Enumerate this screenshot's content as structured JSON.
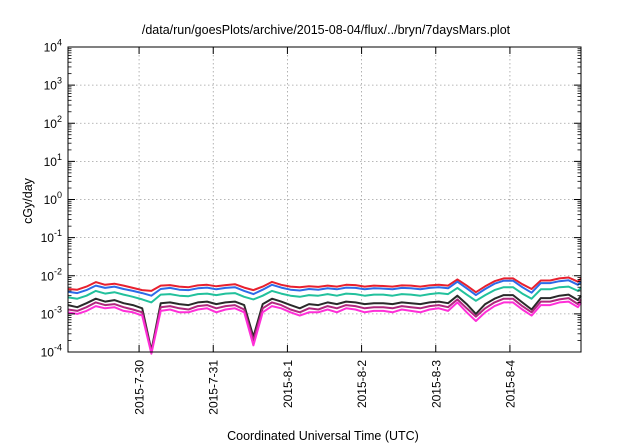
{
  "chart_data": {
    "type": "line",
    "title": "/data/run/goesPlots/archive/2015-08-04/flux/../bryn/7daysMars.plot",
    "xlabel": "Coordinated Universal Time (UTC)",
    "ylabel": "cGy/day",
    "yscale": "log",
    "ylim": [
      0.0001,
      10000
    ],
    "y_tick_labels": [
      {
        "value": 0.0001,
        "base": "10",
        "exp": "-4"
      },
      {
        "value": 0.001,
        "base": "10",
        "exp": "-3"
      },
      {
        "value": 0.01,
        "base": "10",
        "exp": "-2"
      },
      {
        "value": 0.1,
        "base": "10",
        "exp": "-1"
      },
      {
        "value": 1,
        "base": "10",
        "exp": "0"
      },
      {
        "value": 10,
        "base": "10",
        "exp": "1"
      },
      {
        "value": 100,
        "base": "10",
        "exp": "2"
      },
      {
        "value": 1000,
        "base": "10",
        "exp": "3"
      },
      {
        "value": 10000,
        "base": "10",
        "exp": "4"
      }
    ],
    "xlim": [
      "2015-07-29T01:00",
      "2015-08-04T23:00"
    ],
    "x_ticks": [
      {
        "value": "2015-07-30T00:00",
        "label": "2015-7-30"
      },
      {
        "value": "2015-07-31T00:00",
        "label": "2015-7-31"
      },
      {
        "value": "2015-08-01T00:00",
        "label": "2015-8-1"
      },
      {
        "value": "2015-08-02T00:00",
        "label": "2015-8-2"
      },
      {
        "value": "2015-08-03T00:00",
        "label": "2015-8-3"
      },
      {
        "value": "2015-08-04T00:00",
        "label": "2015-8-4"
      }
    ],
    "grid": true,
    "x": [
      "2015-07-29T01:00",
      "2015-07-29T04:00",
      "2015-07-29T07:00",
      "2015-07-29T10:00",
      "2015-07-29T13:00",
      "2015-07-29T16:00",
      "2015-07-29T19:00",
      "2015-07-29T22:00",
      "2015-07-30T01:00",
      "2015-07-30T04:00",
      "2015-07-30T07:00",
      "2015-07-30T10:00",
      "2015-07-30T13:00",
      "2015-07-30T16:00",
      "2015-07-30T19:00",
      "2015-07-30T22:00",
      "2015-07-31T01:00",
      "2015-07-31T04:00",
      "2015-07-31T07:00",
      "2015-07-31T10:00",
      "2015-07-31T13:00",
      "2015-07-31T16:00",
      "2015-07-31T19:00",
      "2015-07-31T22:00",
      "2015-08-01T01:00",
      "2015-08-01T04:00",
      "2015-08-01T07:00",
      "2015-08-01T10:00",
      "2015-08-01T13:00",
      "2015-08-01T16:00",
      "2015-08-01T19:00",
      "2015-08-01T22:00",
      "2015-08-02T01:00",
      "2015-08-02T04:00",
      "2015-08-02T07:00",
      "2015-08-02T10:00",
      "2015-08-02T13:00",
      "2015-08-02T16:00",
      "2015-08-02T19:00",
      "2015-08-02T22:00",
      "2015-08-03T01:00",
      "2015-08-03T04:00",
      "2015-08-03T07:00",
      "2015-08-03T10:00",
      "2015-08-03T13:00",
      "2015-08-03T16:00",
      "2015-08-03T19:00",
      "2015-08-03T22:00",
      "2015-08-04T01:00",
      "2015-08-04T04:00",
      "2015-08-04T07:00",
      "2015-08-04T10:00",
      "2015-08-04T13:00",
      "2015-08-04T16:00",
      "2015-08-04T19:00",
      "2015-08-04T22:00",
      "2015-08-04T23:00"
    ],
    "series": [
      {
        "color": "#e8202e",
        "values": [
          0.0045,
          0.0043,
          0.0052,
          0.0068,
          0.0058,
          0.0062,
          0.0055,
          0.0048,
          0.0042,
          0.004,
          0.0055,
          0.0057,
          0.0052,
          0.005,
          0.0056,
          0.0058,
          0.0053,
          0.0057,
          0.006,
          0.0049,
          0.0042,
          0.0052,
          0.0069,
          0.0058,
          0.0052,
          0.005,
          0.0053,
          0.0051,
          0.0055,
          0.0052,
          0.0058,
          0.0057,
          0.0052,
          0.0055,
          0.0054,
          0.0052,
          0.0056,
          0.0055,
          0.0052,
          0.0056,
          0.0058,
          0.0055,
          0.008,
          0.0055,
          0.0037,
          0.0053,
          0.0072,
          0.0085,
          0.0085,
          0.006,
          0.0045,
          0.0075,
          0.0075,
          0.0085,
          0.009,
          0.007,
          0.0085
        ]
      },
      {
        "color": "#2d6be8",
        "values": [
          0.0038,
          0.0035,
          0.0042,
          0.0055,
          0.0048,
          0.0052,
          0.0045,
          0.004,
          0.0035,
          0.003,
          0.0045,
          0.0048,
          0.0043,
          0.0042,
          0.0047,
          0.0049,
          0.0044,
          0.0048,
          0.005,
          0.004,
          0.0033,
          0.0043,
          0.0058,
          0.0049,
          0.0043,
          0.0041,
          0.0045,
          0.0043,
          0.0047,
          0.0044,
          0.0049,
          0.0048,
          0.0044,
          0.0047,
          0.0046,
          0.0044,
          0.0048,
          0.0047,
          0.0044,
          0.0048,
          0.005,
          0.0047,
          0.007,
          0.0047,
          0.0031,
          0.0045,
          0.0062,
          0.0074,
          0.0074,
          0.005,
          0.0036,
          0.0064,
          0.0064,
          0.0072,
          0.0076,
          0.0058,
          0.007
        ]
      },
      {
        "color": "#22c19c",
        "values": [
          0.0027,
          0.0025,
          0.003,
          0.004,
          0.0034,
          0.0037,
          0.0032,
          0.0028,
          0.0024,
          0.002,
          0.0032,
          0.0033,
          0.003,
          0.0029,
          0.0033,
          0.0034,
          0.0031,
          0.0034,
          0.0035,
          0.0028,
          0.0024,
          0.003,
          0.004,
          0.0034,
          0.003,
          0.0028,
          0.0031,
          0.003,
          0.0033,
          0.003,
          0.0034,
          0.0033,
          0.003,
          0.0032,
          0.0032,
          0.003,
          0.0033,
          0.0032,
          0.003,
          0.0033,
          0.0035,
          0.0033,
          0.0048,
          0.0032,
          0.0022,
          0.0031,
          0.0042,
          0.005,
          0.005,
          0.0034,
          0.0025,
          0.0044,
          0.0044,
          0.005,
          0.0052,
          0.004,
          0.0048
        ]
      },
      {
        "color": "#2a2a2a",
        "values": [
          0.0017,
          0.0015,
          0.0019,
          0.0025,
          0.0021,
          0.0023,
          0.0019,
          0.0017,
          0.0014,
          0.00011,
          0.0019,
          0.002,
          0.0018,
          0.0017,
          0.002,
          0.0021,
          0.0018,
          0.002,
          0.0021,
          0.0017,
          0.00025,
          0.0018,
          0.0025,
          0.0021,
          0.0017,
          0.0014,
          0.0018,
          0.0017,
          0.002,
          0.0018,
          0.0021,
          0.002,
          0.0018,
          0.0019,
          0.0019,
          0.0018,
          0.002,
          0.0019,
          0.0018,
          0.002,
          0.0021,
          0.0019,
          0.003,
          0.0018,
          0.001,
          0.0018,
          0.0025,
          0.0031,
          0.0031,
          0.002,
          0.0013,
          0.0026,
          0.0026,
          0.003,
          0.0032,
          0.0023,
          0.003
        ]
      },
      {
        "color": "#b0287e",
        "values": [
          0.0013,
          0.0012,
          0.0015,
          0.002,
          0.0017,
          0.0018,
          0.0015,
          0.0013,
          0.0011,
          0.0001,
          0.0015,
          0.0016,
          0.0014,
          0.0013,
          0.0016,
          0.0017,
          0.0014,
          0.0016,
          0.0017,
          0.0013,
          0.0002,
          0.0014,
          0.002,
          0.0017,
          0.0013,
          0.0011,
          0.0014,
          0.0013,
          0.0016,
          0.0014,
          0.0017,
          0.0016,
          0.0014,
          0.0015,
          0.0015,
          0.0014,
          0.0016,
          0.0015,
          0.0014,
          0.0016,
          0.0017,
          0.0015,
          0.0024,
          0.0014,
          0.00085,
          0.0014,
          0.002,
          0.0025,
          0.0025,
          0.0016,
          0.0011,
          0.0021,
          0.0021,
          0.0024,
          0.0026,
          0.0018,
          0.0024
        ]
      },
      {
        "color": "#ff2fd8",
        "values": [
          0.0011,
          0.001,
          0.0012,
          0.0016,
          0.0014,
          0.0015,
          0.0012,
          0.0011,
          0.0009,
          9e-05,
          0.0012,
          0.0013,
          0.0011,
          0.0011,
          0.0013,
          0.0014,
          0.0011,
          0.0013,
          0.0014,
          0.0011,
          0.00015,
          0.0011,
          0.0016,
          0.0014,
          0.0011,
          0.0009,
          0.0011,
          0.0011,
          0.0013,
          0.0011,
          0.0014,
          0.0013,
          0.0011,
          0.0012,
          0.0012,
          0.0011,
          0.0013,
          0.0012,
          0.0011,
          0.0013,
          0.0014,
          0.0012,
          0.002,
          0.0011,
          0.00065,
          0.0011,
          0.0016,
          0.002,
          0.002,
          0.0013,
          0.0009,
          0.0017,
          0.0017,
          0.002,
          0.0021,
          0.0015,
          0.002
        ]
      }
    ]
  }
}
